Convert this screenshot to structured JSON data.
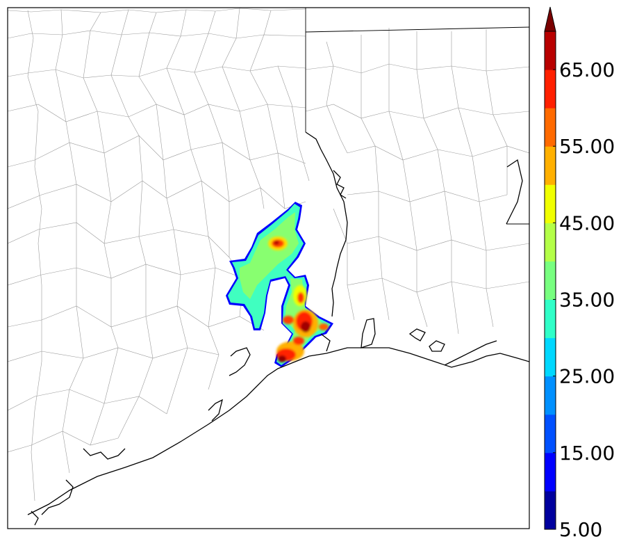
{
  "colorbar": {
    "colors": [
      "#00009e",
      "#0000ff",
      "#0050ff",
      "#0090ff",
      "#00d8ff",
      "#30ffc8",
      "#78ff80",
      "#b4ff48",
      "#f0ff00",
      "#ffb000",
      "#ff6a00",
      "#ff2000",
      "#b80000"
    ],
    "extend_color": "#7a0000",
    "tick_labels": [
      "5.00",
      "15.00",
      "25.00",
      "35.00",
      "45.00",
      "55.00",
      "65.00"
    ]
  },
  "field": {
    "name": "precipitation-field",
    "outline_color": "#0000ff"
  }
}
